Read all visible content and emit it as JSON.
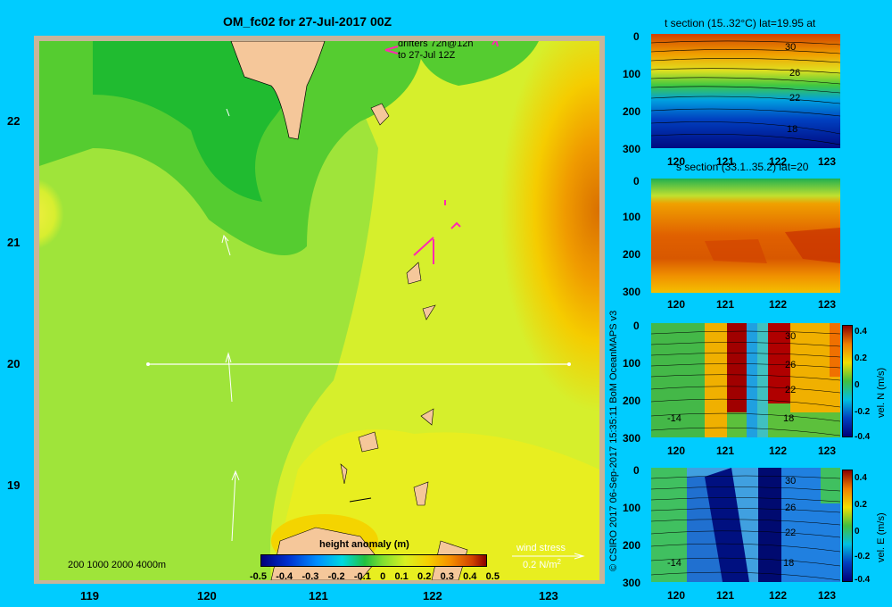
{
  "title": "OM_fc02 for 27-Jul-2017 00Z",
  "map": {
    "lon_ticks": [
      "119",
      "120",
      "121",
      "122",
      "123"
    ],
    "lat_ticks": [
      "22",
      "21",
      "20",
      "19"
    ],
    "depth_legend": "200  1000  2000  4000m",
    "drifters_line1": "drifters 72h@12h",
    "drifters_line2": "to 27-Jul 12Z",
    "wind_label": "wind stress",
    "wind_scale": "0.2 N/m",
    "wind_scale_sup": "2"
  },
  "colorbar": {
    "label": "height anomaly  (m)",
    "ticks": [
      "-0.5",
      "-0.4",
      "-0.3",
      "-0.2",
      "-0.1",
      "0",
      "0.1",
      "0.2",
      "0.3",
      "0.4",
      "0.5"
    ],
    "range": [
      -0.5,
      0.5
    ]
  },
  "panels": [
    {
      "title": "t section (15..32°C) lat=19.95 at",
      "y_ticks": [
        "0",
        "100",
        "200",
        "300"
      ],
      "x_ticks": [
        "120",
        "121",
        "122",
        "123"
      ],
      "contour_labels": [
        "30",
        "26",
        "22",
        "18"
      ],
      "cb_ticks": [],
      "cb_label": ""
    },
    {
      "title": "s section (33.1..35.2) lat=20",
      "y_ticks": [
        "0",
        "100",
        "200",
        "300"
      ],
      "x_ticks": [
        "120",
        "121",
        "122",
        "123"
      ],
      "contour_labels": [],
      "cb_ticks": [],
      "cb_label": ""
    },
    {
      "title": "",
      "y_ticks": [
        "0",
        "100",
        "200",
        "300"
      ],
      "x_ticks": [
        "120",
        "121",
        "122",
        "123"
      ],
      "contour_labels": [
        "30",
        "26",
        "22",
        "18",
        "-14"
      ],
      "cb_ticks": [
        "0.4",
        "0.2",
        "0",
        "-0.2",
        "-0.4"
      ],
      "cb_label": "vel. N (m/s)"
    },
    {
      "title": "",
      "y_ticks": [
        "0",
        "100",
        "200",
        "300"
      ],
      "x_ticks": [
        "120",
        "121",
        "122",
        "123"
      ],
      "contour_labels": [
        "30",
        "26",
        "22",
        "18",
        "-14"
      ],
      "cb_ticks": [
        "0.4",
        "0.2",
        "0",
        "-0.2",
        "-0.4"
      ],
      "cb_label": "vel. E (m/s)"
    }
  ],
  "copyright": "© CSIRO 2017   06-Sep-2017 15:35:11 BoM OceanMAPS v3"
}
